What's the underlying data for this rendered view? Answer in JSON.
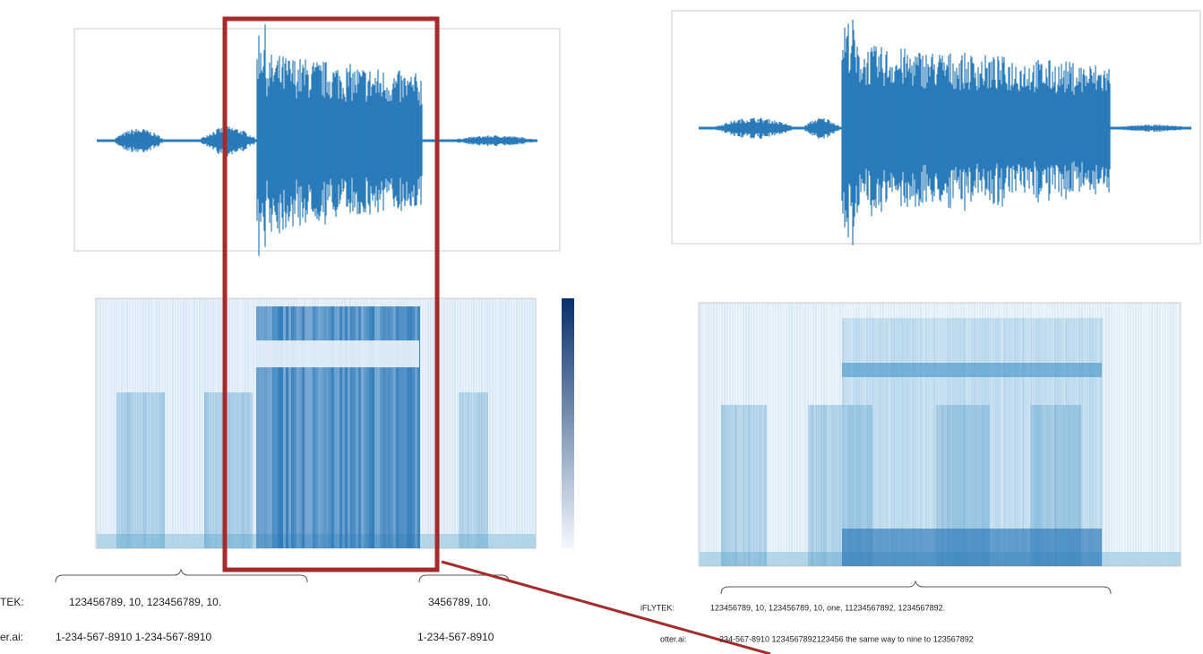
{
  "rows": [
    {
      "label": "TEK:",
      "segments": [
        "123456789, 10, 123456789, 10.",
        "3456789, 10."
      ]
    },
    {
      "label": "er.ai:",
      "segments": [
        "1-234-567-8910 1-234-567-8910",
        "1-234-567-8910"
      ]
    }
  ],
  "right_rows": [
    {
      "label": "iFLYTEK:",
      "text": "123456789, 10, 123456789, 10, one, 11234567892, 1234567892."
    },
    {
      "label": "otter.ai:",
      "text": "234-567-8910 1234567892123456 the same way to nine to 123567892"
    }
  ]
}
